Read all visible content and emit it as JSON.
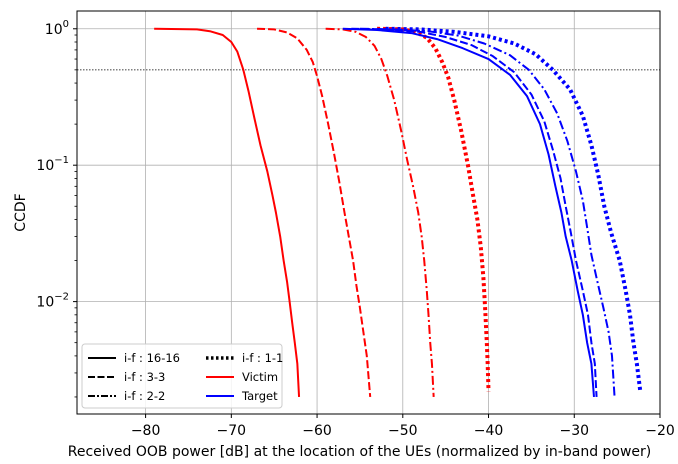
{
  "chart_data": {
    "type": "line",
    "xlabel": "Received OOB power [dB] at the location of the UEs (normalized by in-band power)",
    "ylabel": "CCDF",
    "xlim": [
      -88,
      -20
    ],
    "ylim": [
      0.0015,
      1.35
    ],
    "yscale": "log",
    "grid": true,
    "reference_line": {
      "y": 0.5,
      "style": "dotted",
      "color": "#000000"
    },
    "x_ticks": [
      {
        "value": -80,
        "label": "−80"
      },
      {
        "value": -70,
        "label": "−70"
      },
      {
        "value": -60,
        "label": "−60"
      },
      {
        "value": -50,
        "label": "−50"
      },
      {
        "value": -40,
        "label": "−40"
      },
      {
        "value": -30,
        "label": "−30"
      },
      {
        "value": -20,
        "label": "−20"
      }
    ],
    "y_ticks": [
      {
        "value": 1,
        "base": "10",
        "exp": "0"
      },
      {
        "value": 0.1,
        "base": "10",
        "exp": "−1"
      },
      {
        "value": 0.01,
        "base": "10",
        "exp": "−2"
      }
    ],
    "legend": {
      "placement": "lower-left",
      "entries": [
        {
          "label": "i-f : 16-16",
          "style": "solid",
          "color": "#000000"
        },
        {
          "label": "i-f : 3-3",
          "style": "dashed",
          "color": "#000000"
        },
        {
          "label": "i-f : 2-2",
          "style": "dashdot",
          "color": "#000000"
        },
        {
          "label": "i-f : 1-1",
          "style": "dotted",
          "color": "#000000"
        },
        {
          "label": "Victim",
          "style": "solid",
          "color": "#ff0000"
        },
        {
          "label": "Target",
          "style": "solid",
          "color": "#0000ff"
        }
      ]
    },
    "series": [
      {
        "group": "Victim",
        "if": "16-16",
        "color": "#ff0000",
        "style": "solid",
        "points": [
          [
            -79,
            1.0
          ],
          [
            -74,
            0.99
          ],
          [
            -72.5,
            0.96
          ],
          [
            -71,
            0.9
          ],
          [
            -70,
            0.8
          ],
          [
            -69.3,
            0.68
          ],
          [
            -68.6,
            0.5
          ],
          [
            -68,
            0.35
          ],
          [
            -67.3,
            0.22
          ],
          [
            -66.6,
            0.14
          ],
          [
            -65.8,
            0.09
          ],
          [
            -65.2,
            0.06
          ],
          [
            -64.8,
            0.045
          ],
          [
            -64.3,
            0.03
          ],
          [
            -63.9,
            0.02
          ],
          [
            -63.5,
            0.014
          ],
          [
            -63.2,
            0.01
          ],
          [
            -62.9,
            0.007
          ],
          [
            -62.6,
            0.005
          ],
          [
            -62.3,
            0.0035
          ],
          [
            -62.1,
            0.002
          ]
        ]
      },
      {
        "group": "Victim",
        "if": "3-3",
        "color": "#ff0000",
        "style": "dashed",
        "points": [
          [
            -67,
            1.0
          ],
          [
            -65,
            0.99
          ],
          [
            -63.5,
            0.94
          ],
          [
            -62.3,
            0.85
          ],
          [
            -61.2,
            0.7
          ],
          [
            -60.5,
            0.57
          ],
          [
            -60,
            0.45
          ],
          [
            -59.4,
            0.32
          ],
          [
            -58.7,
            0.2
          ],
          [
            -58,
            0.12
          ],
          [
            -57.4,
            0.075
          ],
          [
            -56.8,
            0.045
          ],
          [
            -56.3,
            0.03
          ],
          [
            -55.8,
            0.02
          ],
          [
            -55.4,
            0.013
          ],
          [
            -55,
            0.009
          ],
          [
            -54.6,
            0.006
          ],
          [
            -54.2,
            0.004
          ],
          [
            -53.8,
            0.002
          ]
        ]
      },
      {
        "group": "Victim",
        "if": "2-2",
        "color": "#ff0000",
        "style": "dashdot",
        "points": [
          [
            -59,
            1.0
          ],
          [
            -57,
            0.99
          ],
          [
            -55.5,
            0.95
          ],
          [
            -54.3,
            0.87
          ],
          [
            -53.3,
            0.75
          ],
          [
            -52.5,
            0.6
          ],
          [
            -51.8,
            0.45
          ],
          [
            -51,
            0.3
          ],
          [
            -50.2,
            0.18
          ],
          [
            -49.5,
            0.11
          ],
          [
            -48.8,
            0.07
          ],
          [
            -48.2,
            0.045
          ],
          [
            -47.8,
            0.03
          ],
          [
            -47.5,
            0.02
          ],
          [
            -47.2,
            0.012
          ],
          [
            -47,
            0.008
          ],
          [
            -46.8,
            0.005
          ],
          [
            -46.6,
            0.0035
          ],
          [
            -46.4,
            0.002
          ]
        ]
      },
      {
        "group": "Victim",
        "if": "1-1",
        "color": "#ff0000",
        "style": "dotted",
        "points": [
          [
            -53,
            1.0
          ],
          [
            -50,
            0.99
          ],
          [
            -48.5,
            0.95
          ],
          [
            -47.2,
            0.86
          ],
          [
            -46.2,
            0.72
          ],
          [
            -45.4,
            0.57
          ],
          [
            -44.7,
            0.44
          ],
          [
            -44,
            0.3
          ],
          [
            -43.2,
            0.18
          ],
          [
            -42.4,
            0.1
          ],
          [
            -41.8,
            0.06
          ],
          [
            -41.3,
            0.04
          ],
          [
            -40.9,
            0.025
          ],
          [
            -40.6,
            0.015
          ],
          [
            -40.4,
            0.009
          ],
          [
            -40.2,
            0.005
          ],
          [
            -40.1,
            0.0035
          ],
          [
            -40,
            0.0022
          ]
        ]
      },
      {
        "group": "Target",
        "if": "16-16",
        "color": "#0000ff",
        "style": "solid",
        "points": [
          [
            -57,
            1.0
          ],
          [
            -53,
            0.98
          ],
          [
            -49,
            0.93
          ],
          [
            -46,
            0.84
          ],
          [
            -43,
            0.72
          ],
          [
            -40,
            0.6
          ],
          [
            -37.5,
            0.46
          ],
          [
            -35.5,
            0.32
          ],
          [
            -34,
            0.2
          ],
          [
            -33,
            0.12
          ],
          [
            -32.2,
            0.07
          ],
          [
            -31.5,
            0.045
          ],
          [
            -31,
            0.03
          ],
          [
            -30.3,
            0.02
          ],
          [
            -29.6,
            0.012
          ],
          [
            -29,
            0.008
          ],
          [
            -28.5,
            0.005
          ],
          [
            -28,
            0.0035
          ],
          [
            -27.7,
            0.002
          ]
        ]
      },
      {
        "group": "Target",
        "if": "3-3",
        "color": "#0000ff",
        "style": "dashed",
        "points": [
          [
            -56,
            1.0
          ],
          [
            -52,
            0.99
          ],
          [
            -48,
            0.95
          ],
          [
            -45,
            0.87
          ],
          [
            -42,
            0.76
          ],
          [
            -39.5,
            0.63
          ],
          [
            -37,
            0.48
          ],
          [
            -35,
            0.33
          ],
          [
            -33.5,
            0.21
          ],
          [
            -32.5,
            0.13
          ],
          [
            -31.6,
            0.08
          ],
          [
            -31,
            0.05
          ],
          [
            -30.4,
            0.032
          ],
          [
            -29.8,
            0.02
          ],
          [
            -29,
            0.012
          ],
          [
            -28.4,
            0.008
          ],
          [
            -28,
            0.005
          ],
          [
            -27.6,
            0.0035
          ],
          [
            -27.4,
            0.002
          ]
        ]
      },
      {
        "group": "Target",
        "if": "2-2",
        "color": "#0000ff",
        "style": "dashdot",
        "points": [
          [
            -55,
            1.0
          ],
          [
            -51,
            0.99
          ],
          [
            -47,
            0.96
          ],
          [
            -43.5,
            0.89
          ],
          [
            -40.5,
            0.78
          ],
          [
            -37.5,
            0.64
          ],
          [
            -35.3,
            0.5
          ],
          [
            -33.5,
            0.36
          ],
          [
            -32,
            0.24
          ],
          [
            -30.8,
            0.15
          ],
          [
            -29.8,
            0.09
          ],
          [
            -29,
            0.055
          ],
          [
            -28.5,
            0.035
          ],
          [
            -28,
            0.022
          ],
          [
            -27.3,
            0.014
          ],
          [
            -26.6,
            0.009
          ],
          [
            -26,
            0.006
          ],
          [
            -25.6,
            0.004
          ],
          [
            -25.3,
            0.002
          ]
        ]
      },
      {
        "group": "Target",
        "if": "1-1",
        "color": "#0000ff",
        "style": "dotted",
        "points": [
          [
            -52,
            1.0
          ],
          [
            -48,
            0.99
          ],
          [
            -44,
            0.95
          ],
          [
            -40,
            0.88
          ],
          [
            -37,
            0.78
          ],
          [
            -34.5,
            0.65
          ],
          [
            -32.5,
            0.5
          ],
          [
            -30.5,
            0.36
          ],
          [
            -29,
            0.23
          ],
          [
            -28,
            0.14
          ],
          [
            -27.2,
            0.085
          ],
          [
            -26.5,
            0.05
          ],
          [
            -25.7,
            0.032
          ],
          [
            -24.7,
            0.02
          ],
          [
            -24,
            0.012
          ],
          [
            -23.5,
            0.008
          ],
          [
            -23.1,
            0.005
          ],
          [
            -22.7,
            0.0035
          ],
          [
            -22.3,
            0.0022
          ]
        ]
      }
    ]
  }
}
